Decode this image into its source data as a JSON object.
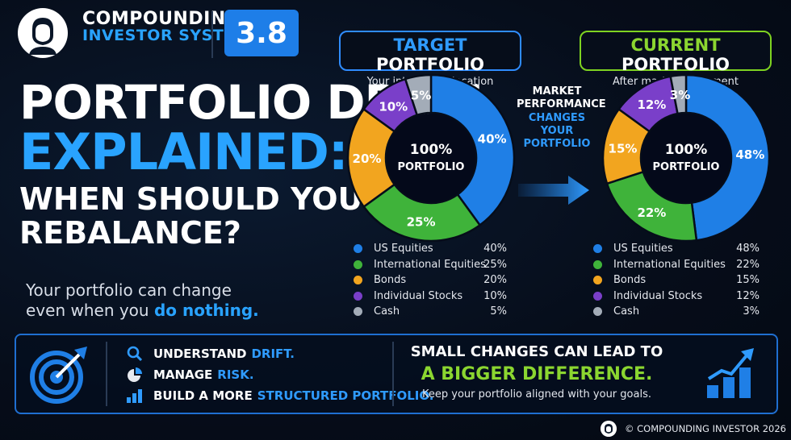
{
  "header": {
    "brand_line1": "COMPOUNDING",
    "brand_line2": "INVESTOR SYSTEM",
    "badge": "3.8"
  },
  "title": {
    "line1": "PORTFOLIO DRIFT",
    "line2": "EXPLAINED:",
    "line3": "WHEN SHOULD YOU",
    "line4": "REBALANCE?"
  },
  "subtitle": {
    "line1": "Your portfolio can change",
    "line2_prefix": "even when you ",
    "line2_highlight": "do nothing."
  },
  "target": {
    "heading_word1": "TARGET",
    "heading_word2": "PORTFOLIO",
    "subheading": "Your intended allocation",
    "center_line1": "100%",
    "center_line2": "PORTFOLIO"
  },
  "current": {
    "heading_word1": "CURRENT",
    "heading_word2": "PORTFOLIO",
    "subheading": "After market movement",
    "center_line1": "100%",
    "center_line2": "PORTFOLIO"
  },
  "middle": {
    "line1": "MARKET",
    "line2": "PERFORMANCE",
    "line3": "CHANGES",
    "line4": "YOUR",
    "line5": "PORTFOLIO"
  },
  "colors": {
    "us_equities": "#1f7fe6",
    "international_equities": "#3fb33a",
    "bonds": "#f2a51f",
    "individual_stocks": "#7a3fc9",
    "cash": "#a3acb8",
    "accent_blue": "#2f9bff",
    "accent_green": "#8bd630"
  },
  "chart_data": [
    {
      "type": "pie",
      "categories": [
        "US Equities",
        "International Equities",
        "Bonds",
        "Individual Stocks",
        "Cash"
      ],
      "values": [
        40,
        25,
        20,
        10,
        5
      ],
      "labels": [
        "40%",
        "25%",
        "20%",
        "10%",
        "5%"
      ],
      "donut": true
    },
    {
      "type": "pie",
      "categories": [
        "US Equities",
        "International Equities",
        "Bonds",
        "Individual Stocks",
        "Cash"
      ],
      "values": [
        48,
        22,
        15,
        12,
        3
      ],
      "labels": [
        "48%",
        "22%",
        "15%",
        "12%",
        "3%"
      ],
      "donut": true
    }
  ],
  "legend_target": [
    {
      "label": "US Equities",
      "pct": "40%"
    },
    {
      "label": "International Equities",
      "pct": "25%"
    },
    {
      "label": "Bonds",
      "pct": "20%"
    },
    {
      "label": "Individual Stocks",
      "pct": "10%"
    },
    {
      "label": "Cash",
      "pct": "5%"
    }
  ],
  "legend_current": [
    {
      "label": "US Equities",
      "pct": "48%"
    },
    {
      "label": "International Equities",
      "pct": "22%"
    },
    {
      "label": "Bonds",
      "pct": "15%"
    },
    {
      "label": "Individual Stocks",
      "pct": "12%"
    },
    {
      "label": "Cash",
      "pct": "3%"
    }
  ],
  "bottom": {
    "item1_prefix": "UNDERSTAND",
    "item1_highlight": "DRIFT.",
    "item2_prefix": "MANAGE",
    "item2_highlight": "RISK.",
    "item3_prefix": "BUILD A MORE",
    "item3_highlight": "STRUCTURED PORTFOLIO.",
    "cta_line1": "SMALL CHANGES CAN LEAD TO",
    "cta_line2": "A BIGGER DIFFERENCE.",
    "cta_line3": "Keep your portfolio aligned with your goals."
  },
  "footer": {
    "copyright": "© COMPOUNDING INVESTOR 2026"
  }
}
